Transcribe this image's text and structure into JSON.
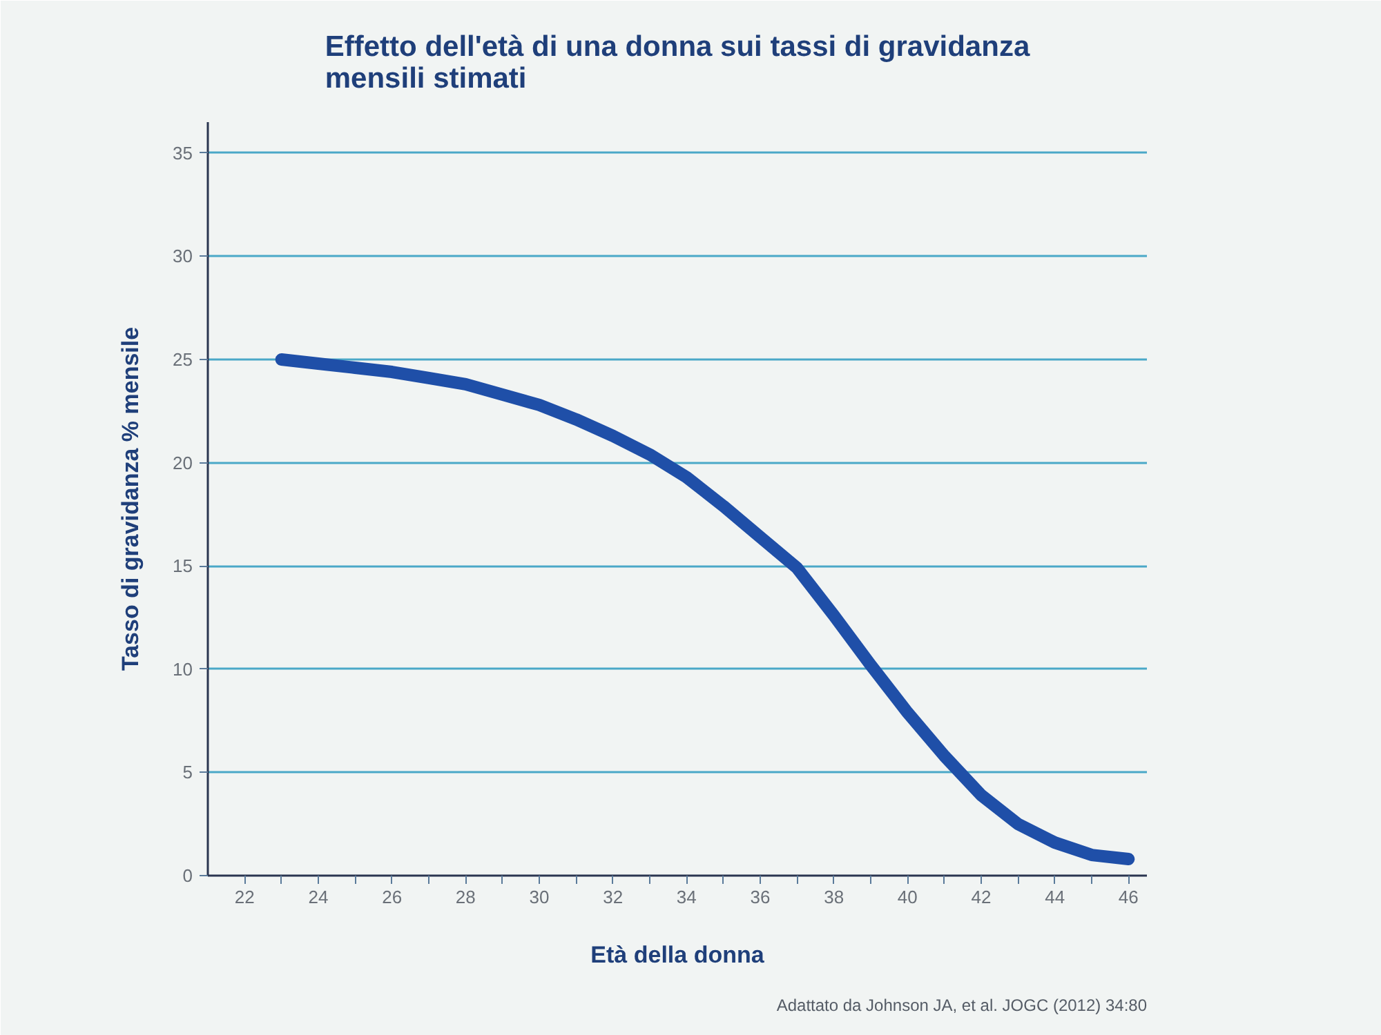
{
  "chart_data": {
    "type": "line",
    "title": "Effetto dell'età di una donna sui tassi di gravidanza mensili stimati",
    "xlabel": "Età della donna",
    "ylabel": "Tasso di gravidanza % mensile",
    "annotations": [
      "Adattato da Johnson JA, et al. JOGC (2012) 34:80"
    ],
    "series": [
      {
        "color": "#1f4fa8",
        "x": [
          23,
          24,
          25,
          26,
          27,
          28,
          29,
          30,
          31,
          32,
          33,
          34,
          35,
          36,
          37,
          38,
          39,
          40,
          41,
          42,
          43,
          44,
          45,
          46
        ],
        "values": [
          25,
          24.8,
          24.6,
          24.4,
          24.1,
          23.8,
          23.3,
          22.8,
          22.1,
          21.3,
          20.4,
          19.3,
          17.9,
          16.4,
          14.9,
          12.6,
          10.2,
          7.9,
          5.8,
          3.9,
          2.5,
          1.6,
          1.0,
          0.8
        ]
      }
    ],
    "xlim": [
      21,
      46.5
    ],
    "xticks": [
      22,
      {
        "value": 23,
        "label": null
      },
      24,
      {
        "value": 25,
        "label": null
      },
      26,
      {
        "value": 27,
        "label": null
      },
      28,
      {
        "value": 29,
        "label": null
      },
      30,
      {
        "value": 31,
        "label": null
      },
      32,
      {
        "value": 33,
        "label": null
      },
      34,
      {
        "value": 35,
        "label": null
      },
      36,
      {
        "value": 37,
        "label": null
      },
      38,
      {
        "value": 39,
        "label": null
      },
      40,
      {
        "value": 41,
        "label": null
      },
      42,
      {
        "value": 43,
        "label": null
      },
      44,
      {
        "value": 45,
        "label": null
      },
      46
    ],
    "ylim": [
      0,
      36.5
    ],
    "yticks": [
      0,
      5,
      10,
      15,
      20,
      25,
      30,
      35
    ],
    "grid": "y",
    "line_style": "solid"
  }
}
